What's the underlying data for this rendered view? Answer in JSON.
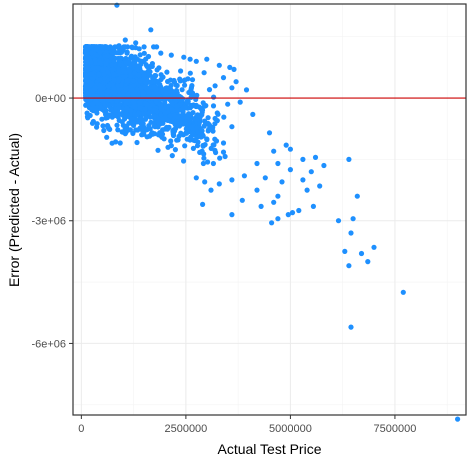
{
  "chart_data": {
    "type": "scatter",
    "title": "",
    "xlabel": "Actual Test Price",
    "ylabel": "Error (Predicted - Actual)",
    "xlim": [
      -200000,
      9200000
    ],
    "ylim": [
      -7750000,
      2300000
    ],
    "x_ticks": [
      {
        "value": 0,
        "label": "0"
      },
      {
        "value": 2500000,
        "label": "2500000"
      },
      {
        "value": 5000000,
        "label": "5000000"
      },
      {
        "value": 7500000,
        "label": "7500000"
      }
    ],
    "y_ticks": [
      {
        "value": 0,
        "label": "0e+00"
      },
      {
        "value": -3000000,
        "label": "-3e+06"
      },
      {
        "value": -6000000,
        "label": "-6e+06"
      }
    ],
    "grid": true,
    "reference_line": {
      "y": 0,
      "color": "#cc0000"
    },
    "point_color": "#1e90ff",
    "points": [
      [
        850000,
        2270000
      ],
      [
        1660000,
        1670000
      ],
      [
        1050000,
        1420000
      ],
      [
        1300000,
        1350000
      ],
      [
        900000,
        1280000
      ],
      [
        1500000,
        1250000
      ],
      [
        1800000,
        1250000
      ],
      [
        1900000,
        1100000
      ],
      [
        2150000,
        1050000
      ],
      [
        2450000,
        1000000
      ],
      [
        2600000,
        950000
      ],
      [
        2750000,
        900000
      ],
      [
        3000000,
        950000
      ],
      [
        3300000,
        800000
      ],
      [
        3550000,
        750000
      ],
      [
        3650000,
        700000
      ],
      [
        3400000,
        500000
      ],
      [
        3700000,
        400000
      ],
      [
        3600000,
        250000
      ],
      [
        3200000,
        300000
      ],
      [
        3950000,
        200000
      ],
      [
        3800000,
        -100000
      ],
      [
        3500000,
        -150000
      ],
      [
        4100000,
        -400000
      ],
      [
        3200000,
        -500000
      ],
      [
        3600000,
        -700000
      ],
      [
        4500000,
        -850000
      ],
      [
        3000000,
        -1000000
      ],
      [
        3400000,
        -1100000
      ],
      [
        4900000,
        -1150000
      ],
      [
        4600000,
        -1300000
      ],
      [
        5000000,
        -1250000
      ],
      [
        5300000,
        -1500000
      ],
      [
        5600000,
        -1450000
      ],
      [
        4700000,
        -1600000
      ],
      [
        4200000,
        -1600000
      ],
      [
        5000000,
        -1750000
      ],
      [
        5500000,
        -1800000
      ],
      [
        5800000,
        -1650000
      ],
      [
        6400000,
        -1500000
      ],
      [
        3900000,
        -1900000
      ],
      [
        4400000,
        -1950000
      ],
      [
        4800000,
        -2050000
      ],
      [
        5300000,
        -2000000
      ],
      [
        3600000,
        -2000000
      ],
      [
        3300000,
        -2100000
      ],
      [
        2950000,
        -2050000
      ],
      [
        2750000,
        -1950000
      ],
      [
        3100000,
        -2250000
      ],
      [
        4200000,
        -2250000
      ],
      [
        4700000,
        -2400000
      ],
      [
        5400000,
        -2250000
      ],
      [
        5700000,
        -2150000
      ],
      [
        4600000,
        -2550000
      ],
      [
        3850000,
        -2500000
      ],
      [
        2900000,
        -2600000
      ],
      [
        4300000,
        -2650000
      ],
      [
        5550000,
        -2650000
      ],
      [
        5200000,
        -2750000
      ],
      [
        5050000,
        -2800000
      ],
      [
        4950000,
        -2850000
      ],
      [
        6600000,
        -2400000
      ],
      [
        6500000,
        -2950000
      ],
      [
        6150000,
        -3000000
      ],
      [
        4700000,
        -2950000
      ],
      [
        4550000,
        -3050000
      ],
      [
        3600000,
        -2850000
      ],
      [
        6450000,
        -3300000
      ],
      [
        6300000,
        -3750000
      ],
      [
        6700000,
        -3800000
      ],
      [
        7000000,
        -3650000
      ],
      [
        6400000,
        -4100000
      ],
      [
        6850000,
        -4000000
      ],
      [
        7700000,
        -4750000
      ],
      [
        6450000,
        -5600000
      ],
      [
        9000000,
        -7850000
      ]
    ],
    "cloud": {
      "count": 2600,
      "x_range": [
        100000,
        3500000
      ],
      "error_center_slope": -0.47,
      "error_center_intercept": 740000,
      "error_spread": 520000,
      "clip_y": [
        -1600000,
        1250000
      ]
    }
  }
}
